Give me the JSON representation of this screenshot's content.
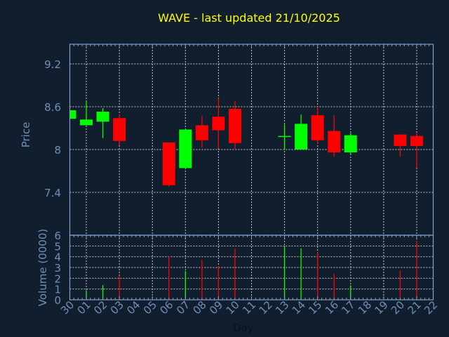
{
  "chart_data": {
    "type": "candlestick",
    "title": "WAVE - last updated 21/10/2025",
    "xlabel": "Day",
    "ylabel_price": "Price",
    "ylabel_volume": "Volume (0000)",
    "x_ticks": [
      "30",
      "01",
      "02",
      "03",
      "04",
      "05",
      "06",
      "07",
      "08",
      "09",
      "10",
      "11",
      "12",
      "13",
      "14",
      "15",
      "16",
      "17",
      "18",
      "19",
      "20",
      "21",
      "22"
    ],
    "price_ticks": [
      "7.4",
      "8",
      "8.6",
      "9.2"
    ],
    "price_tick_values": [
      7.4,
      8,
      8.6,
      9.2
    ],
    "price_range": [
      6.8,
      9.475
    ],
    "volume_ticks": [
      "0",
      "1",
      "2",
      "3",
      "4",
      "5",
      "6"
    ],
    "volume_range": [
      0,
      6
    ],
    "grid": true,
    "colors": {
      "up": "#00ff00",
      "down": "#ff0000",
      "title": "#ffff00",
      "axis": "#7f9fc7",
      "label": "#6f8fb8",
      "grid": "#c8c8c8",
      "background": "#111e2e"
    },
    "candles": [
      {
        "day": "30",
        "open": 8.43,
        "high": 8.55,
        "low": 8.43,
        "close": 8.55,
        "volume": null
      },
      {
        "day": "01",
        "open": 8.34,
        "high": 8.69,
        "low": 8.34,
        "close": 8.42,
        "volume": 0.87
      },
      {
        "day": "02",
        "open": 8.39,
        "high": 8.58,
        "low": 8.16,
        "close": 8.53,
        "volume": 1.37
      },
      {
        "day": "03",
        "open": 8.44,
        "high": 8.49,
        "low": 8.06,
        "close": 8.12,
        "volume": 2.24
      },
      {
        "day": "06",
        "open": 8.1,
        "high": 8.1,
        "low": 7.48,
        "close": 7.5,
        "volume": 4.02
      },
      {
        "day": "07",
        "open": 7.74,
        "high": 8.28,
        "low": 7.74,
        "close": 8.28,
        "volume": 2.67
      },
      {
        "day": "08",
        "open": 8.34,
        "high": 8.47,
        "low": 8.03,
        "close": 8.13,
        "volume": 3.7
      },
      {
        "day": "09",
        "open": 8.46,
        "high": 8.72,
        "low": 8.01,
        "close": 8.27,
        "volume": 3.15
      },
      {
        "day": "10",
        "open": 8.57,
        "high": 8.68,
        "low": 8.01,
        "close": 8.09,
        "volume": 4.76
      },
      {
        "day": "13",
        "open": 8.18,
        "high": 8.35,
        "low": 8.0,
        "close": 8.19,
        "volume": 5.02
      },
      {
        "day": "14",
        "open": 8.0,
        "high": 8.49,
        "low": 8.0,
        "close": 8.36,
        "volume": 4.78
      },
      {
        "day": "15",
        "open": 8.48,
        "high": 8.6,
        "low": 8.08,
        "close": 8.13,
        "volume": 4.41
      },
      {
        "day": "16",
        "open": 8.26,
        "high": 8.48,
        "low": 7.9,
        "close": 7.96,
        "volume": 2.41
      },
      {
        "day": "17",
        "open": 7.96,
        "high": 8.23,
        "low": 7.94,
        "close": 8.2,
        "volume": 1.35
      },
      {
        "day": "20",
        "open": 8.21,
        "high": 8.21,
        "low": 7.9,
        "close": 8.05,
        "volume": 2.72
      },
      {
        "day": "21",
        "open": 8.19,
        "high": 8.23,
        "low": 7.74,
        "close": 8.05,
        "volume": 5.48
      }
    ]
  }
}
